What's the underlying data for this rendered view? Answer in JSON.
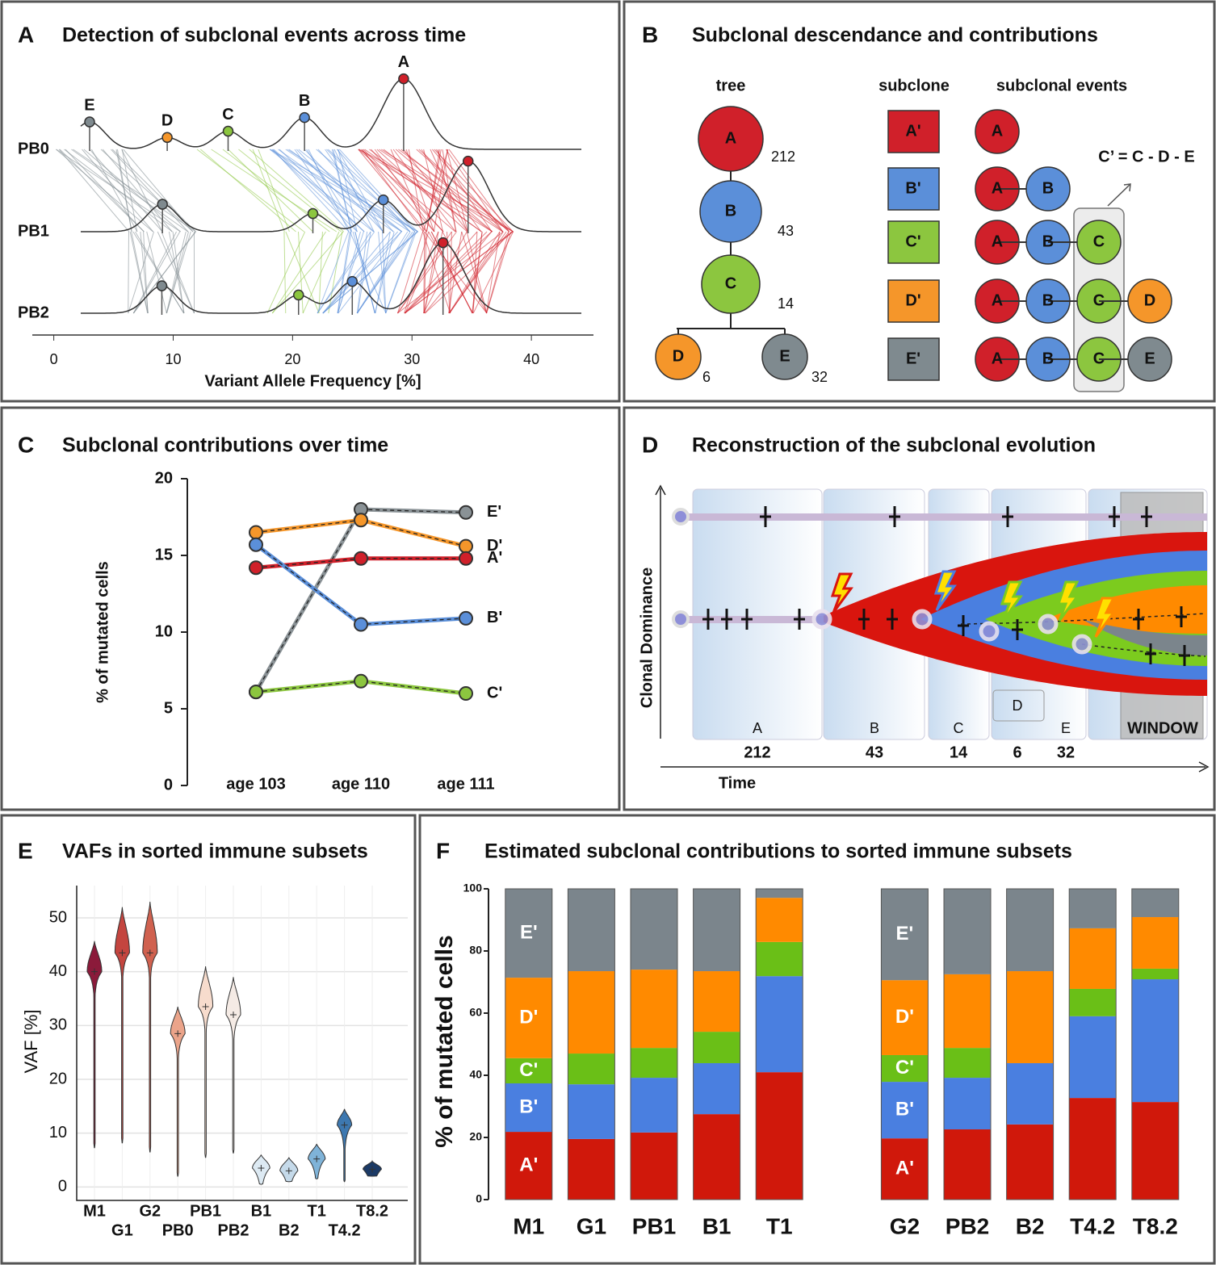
{
  "chart_data": [
    {
      "type": "ridge",
      "panel": "A",
      "title": "Detection of subclonal events across time",
      "x_label": "Variant Allele Frequency [%]",
      "categories": [
        "PB0",
        "PB1",
        "PB2"
      ],
      "series": [
        {
          "name": "E",
          "color": "#7f8a8f",
          "values": [
            3,
            9.1,
            9.05
          ]
        },
        {
          "name": "D",
          "color": "#f5962a",
          "values": [
            9.5,
            null,
            null
          ]
        },
        {
          "name": "C",
          "color": "#8cc63f",
          "values": [
            14.6,
            21.7,
            20.5
          ]
        },
        {
          "name": "B",
          "color": "#5b8fd9",
          "values": [
            21,
            27.6,
            25
          ]
        },
        {
          "name": "A",
          "color": "#d0202a",
          "values": [
            29.3,
            34.7,
            32.6
          ]
        }
      ],
      "xlim": [
        -1.8,
        45.2
      ],
      "xticks": [
        0,
        10,
        20,
        30,
        40
      ]
    },
    {
      "type": "line",
      "panel": "C",
      "title": "Subclonal contributions over time",
      "y_label": "% of mutated cells",
      "categories": [
        "age 103",
        "age 110",
        "age 111"
      ],
      "series": [
        {
          "name": "E'",
          "color": "#8a9296",
          "values": [
            6.1,
            18,
            17.8
          ]
        },
        {
          "name": "D'",
          "color": "#f5962a",
          "values": [
            16.5,
            17.3,
            15.6
          ]
        },
        {
          "name": "A'",
          "color": "#d0202a",
          "values": [
            14.2,
            14.8,
            14.8
          ]
        },
        {
          "name": "B'",
          "color": "#5b8fd9",
          "values": [
            15.7,
            10.5,
            10.9
          ]
        },
        {
          "name": "C'",
          "color": "#8cc63f",
          "values": [
            6.1,
            6.8,
            6.0
          ]
        }
      ],
      "ylim": [
        0,
        20
      ],
      "yticks": [
        0,
        5,
        10,
        15,
        20
      ]
    },
    {
      "type": "violin",
      "panel": "E",
      "title": "VAFs in sorted immune subsets",
      "y_label": "VAF [%]",
      "categories": [
        "M1",
        "G1",
        "G2",
        "PB0",
        "PB1",
        "PB2",
        "B1",
        "B2",
        "T1",
        "T4.2",
        "T8.2"
      ],
      "values": [
        40,
        43.5,
        43.5,
        28.5,
        33.5,
        32,
        3.5,
        3,
        5.2,
        11.5,
        3.3
      ],
      "min": [
        7.3,
        8.2,
        6.5,
        2,
        5.5,
        6.3,
        0.5,
        1,
        1.5,
        1,
        2
      ],
      "max": [
        45.7,
        52,
        53,
        33.5,
        41,
        39,
        6,
        5.5,
        8,
        14.5,
        4.8
      ],
      "colors": [
        "#8b1a3a",
        "#c4453f",
        "#d0614f",
        "#eba48a",
        "#f7dccd",
        "#f5ebe5",
        "#ddeaf3",
        "#c5daea",
        "#7fb3d8",
        "#3d78b0",
        "#1b3a66"
      ],
      "ylim": [
        -2.5,
        56
      ],
      "yticks": [
        0,
        10,
        20,
        30,
        40,
        50
      ],
      "grid": true
    },
    {
      "type": "stacked_bar",
      "panel": "F",
      "title": "Estimated subclonal contributions to sorted immune subsets",
      "y_label": "% of mutated cells",
      "categories": [
        "M1",
        "G1",
        "PB1",
        "B1",
        "T1",
        null,
        "G2",
        "PB2",
        "B2",
        "T4.2",
        "T8.2"
      ],
      "series": [
        {
          "name": "A'",
          "color": "#d0180b",
          "values": [
            21.8,
            19.5,
            21.6,
            27.5,
            41,
            null,
            19.7,
            22.6,
            24.2,
            32.7,
            31.4
          ]
        },
        {
          "name": "B'",
          "color": "#4a7fe0",
          "values": [
            15.6,
            17.6,
            17.6,
            16.4,
            30.9,
            null,
            18.2,
            16.6,
            19.7,
            26.3,
            39.5
          ]
        },
        {
          "name": "C'",
          "color": "#6abf17",
          "values": [
            8.1,
            9.9,
            9.6,
            10.1,
            11,
            null,
            8.6,
            9.6,
            0,
            8.8,
            3.4
          ]
        },
        {
          "name": "D'",
          "color": "#ff8a00",
          "values": [
            25.9,
            26.5,
            25.2,
            19.5,
            14.2,
            null,
            24.1,
            23.7,
            29.6,
            19.5,
            16.6
          ]
        },
        {
          "name": "E'",
          "color": "#7b858c",
          "values": [
            28.6,
            26.5,
            26,
            26.5,
            2.9,
            null,
            29.4,
            27.5,
            26.5,
            12.7,
            9.1
          ]
        }
      ],
      "ylim": [
        0,
        100
      ],
      "yticks": [
        0,
        20,
        40,
        60,
        80,
        100
      ]
    }
  ],
  "panel_b": {
    "panel": "B",
    "title": "Subclonal descendance and contributions",
    "headings": [
      "tree",
      "subclone",
      "subclonal events"
    ],
    "tree": {
      "nodes": [
        {
          "label": "A",
          "count": 212,
          "color": "#d0202a"
        },
        {
          "label": "B",
          "count": 43,
          "color": "#5b8fd9"
        },
        {
          "label": "C",
          "count": 14,
          "color": "#8cc63f"
        },
        {
          "label": "D",
          "count": 6,
          "color": "#f5962a"
        },
        {
          "label": "E",
          "count": 32,
          "color": "#7f8a8f"
        }
      ]
    },
    "subclones": [
      "A'",
      "B'",
      "C'",
      "D'",
      "E'"
    ],
    "events": [
      [
        "A"
      ],
      [
        "A",
        "B"
      ],
      [
        "A",
        "B",
        "C"
      ],
      [
        "A",
        "B",
        "C",
        "D"
      ],
      [
        "A",
        "B",
        "C",
        "E"
      ]
    ],
    "formula": "C’ = C - D - E"
  },
  "panel_d": {
    "panel": "D",
    "title": "Reconstruction of the subclonal evolution",
    "y_label": "Clonal Dominance",
    "x_label": "Time",
    "phases": [
      {
        "label": "A",
        "count": "212"
      },
      {
        "label": "B",
        "count": "43"
      },
      {
        "label": "C",
        "count": "14"
      },
      {
        "label": "D",
        "count": "6"
      },
      {
        "label": "E",
        "count": "32"
      }
    ],
    "window": "WINDOW"
  }
}
